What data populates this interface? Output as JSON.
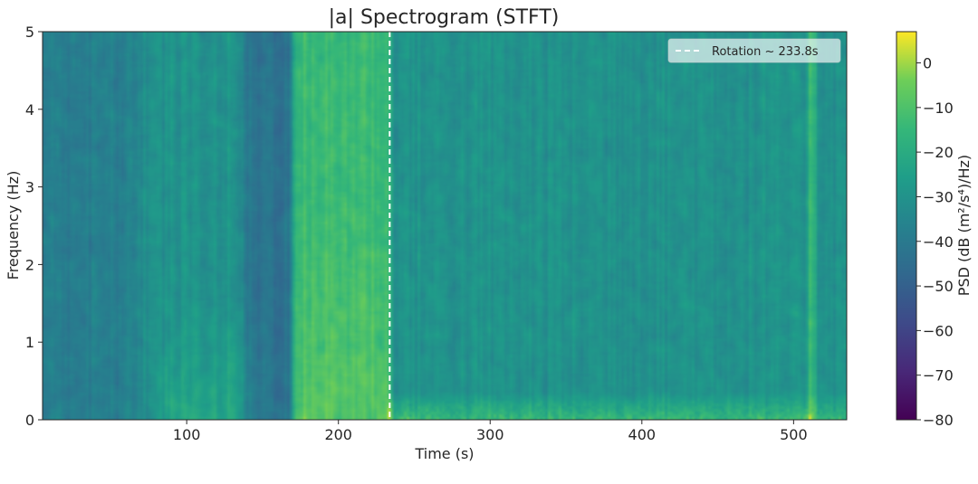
{
  "chart_data": {
    "type": "heatmap",
    "title": "|a| Spectrogram (STFT)",
    "xlabel": "Time (s)",
    "ylabel": "Frequency (Hz)",
    "xlim": [
      5,
      535
    ],
    "ylim": [
      0,
      5
    ],
    "x_ticks": [
      100,
      200,
      300,
      400,
      500
    ],
    "x_tick_labels": [
      "100",
      "200",
      "300",
      "400",
      "500"
    ],
    "y_ticks": [
      0,
      1,
      2,
      3,
      4,
      5
    ],
    "y_tick_labels": [
      "0",
      "1",
      "2",
      "3",
      "4",
      "5"
    ],
    "colormap": "viridis",
    "colorbar": {
      "label": "PSD (dB (m²/s⁴)/Hz)",
      "range": [
        -80,
        7
      ],
      "ticks": [
        0,
        -10,
        -20,
        -30,
        -40,
        -50,
        -60,
        -70,
        -80
      ],
      "tick_labels": [
        "0",
        "−10",
        "−20",
        "−30",
        "−40",
        "−50",
        "−60",
        "−70",
        "−80"
      ]
    },
    "approx_levels_db": {
      "background": -30,
      "quiet_band_0_60s": -38,
      "quiet_band_140_168s": -42,
      "burst_170_230s": -8,
      "low_freq_after_230s": -10,
      "vertical_line_512s": -15
    },
    "vline": {
      "x": 233.8,
      "style": "dashed",
      "color": "#ffffff"
    },
    "legend": {
      "location": "top-right",
      "entries": [
        "Rotation ~ 233.8s"
      ]
    }
  }
}
